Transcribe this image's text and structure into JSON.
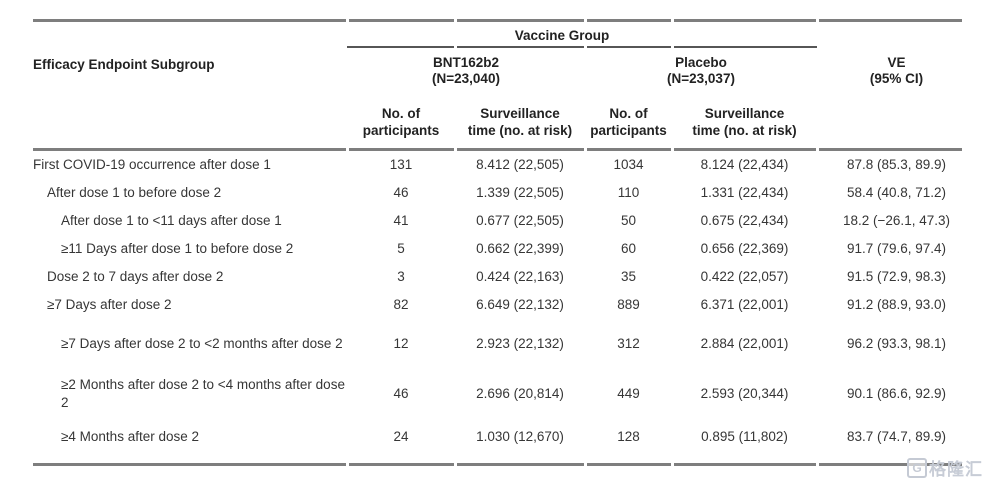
{
  "table": {
    "group_header": "Vaccine Group",
    "col1_header": "Efficacy Endpoint Subgroup",
    "groups": [
      {
        "name": "BNT162b2",
        "n": "(N=23,040)"
      },
      {
        "name": "Placebo",
        "n": "(N=23,037)"
      }
    ],
    "ve_header": {
      "line1": "VE",
      "line2": "(95% CI)"
    },
    "subheaders": {
      "participants_l1": "No. of",
      "participants_l2": "participants",
      "surveillance_l1": "Surveillance",
      "surveillance_l2": "time (no. at risk)"
    },
    "rows": [
      {
        "label": "First COVID-19 occurrence after dose 1",
        "indent": 0,
        "bnt_participants": "131",
        "bnt_surveillance": "8.412 (22,505)",
        "placebo_participants": "1034",
        "placebo_surveillance": "8.124 (22,434)",
        "ve": "87.8 (85.3, 89.9)"
      },
      {
        "label": "After dose 1 to before dose 2",
        "indent": 1,
        "bnt_participants": "46",
        "bnt_surveillance": "1.339 (22,505)",
        "placebo_participants": "110",
        "placebo_surveillance": "1.331 (22,434)",
        "ve": "58.4 (40.8, 71.2)"
      },
      {
        "label": "After dose 1 to <11 days after dose 1",
        "indent": 2,
        "bnt_participants": "41",
        "bnt_surveillance": "0.677 (22,505)",
        "placebo_participants": "50",
        "placebo_surveillance": "0.675 (22,434)",
        "ve": "18.2 (−26.1, 47.3)"
      },
      {
        "label": "≥11 Days after dose 1 to before dose 2",
        "indent": 2,
        "bnt_participants": "5",
        "bnt_surveillance": "0.662 (22,399)",
        "placebo_participants": "60",
        "placebo_surveillance": "0.656 (22,369)",
        "ve": "91.7 (79.6, 97.4)"
      },
      {
        "label": "Dose 2 to 7 days after dose 2",
        "indent": 1,
        "bnt_participants": "3",
        "bnt_surveillance": "0.424 (22,163)",
        "placebo_participants": "35",
        "placebo_surveillance": "0.422 (22,057)",
        "ve": "91.5 (72.9, 98.3)"
      },
      {
        "label": "≥7 Days after dose 2",
        "indent": 1,
        "bnt_participants": "82",
        "bnt_surveillance": "6.649 (22,132)",
        "placebo_participants": "889",
        "placebo_surveillance": "6.371 (22,001)",
        "ve": "91.2 (88.9, 93.0)"
      },
      {
        "label": "≥7 Days after dose 2 to <2 months after dose 2",
        "indent": 2,
        "bnt_participants": "12",
        "bnt_surveillance": "2.923 (22,132)",
        "placebo_participants": "312",
        "placebo_surveillance": "2.884 (22,001)",
        "ve": "96.2 (93.3, 98.1)"
      },
      {
        "label": "≥2 Months after dose 2 to <4 months after dose 2",
        "indent": 2,
        "bnt_participants": "46",
        "bnt_surveillance": "2.696 (20,814)",
        "placebo_participants": "449",
        "placebo_surveillance": "2.593 (20,344)",
        "ve": "90.1 (86.6, 92.9)"
      },
      {
        "label": "≥4 Months after dose 2",
        "indent": 2,
        "bnt_participants": "24",
        "bnt_surveillance": "1.030 (12,670)",
        "placebo_participants": "128",
        "placebo_surveillance": "0.895 (11,802)",
        "ve": "83.7 (74.7, 89.9)"
      }
    ]
  },
  "watermark": {
    "logo_letter": "G",
    "text": "格隆汇",
    "color": "#c5cad4"
  }
}
